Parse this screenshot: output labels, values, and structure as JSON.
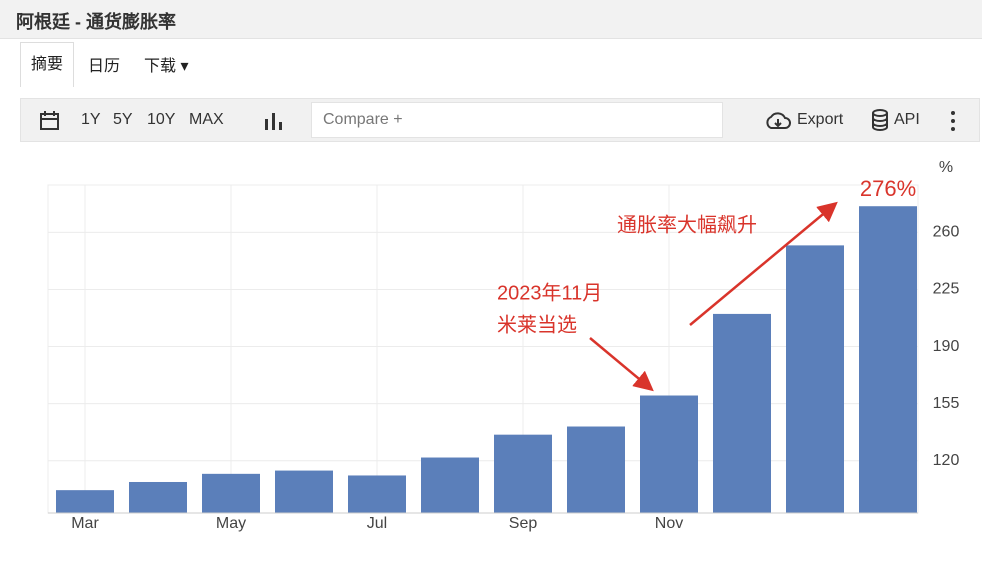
{
  "header": {
    "title": "阿根廷 - 通货膨胀率"
  },
  "tabs": [
    "摘要",
    "日历",
    "下载"
  ],
  "toolbar": {
    "ranges": [
      "1Y",
      "5Y",
      "10Y",
      "MAX"
    ],
    "compare": "Compare +",
    "export": "Export",
    "api": "API"
  },
  "chart_data": {
    "type": "bar",
    "y_unit": "%",
    "categories": [
      "Mar",
      null,
      "May",
      null,
      "Jul",
      null,
      "Sep",
      null,
      "Nov",
      null,
      null,
      null
    ],
    "values": [
      102,
      107,
      112,
      114,
      111,
      122,
      136,
      141,
      160,
      210,
      252,
      276
    ],
    "value_labels": [
      null,
      null,
      null,
      null,
      null,
      null,
      null,
      null,
      null,
      null,
      null,
      "276%"
    ],
    "color": "#5b7fba",
    "label_color": "#d9342b",
    "ylim": [
      88,
      289
    ],
    "yticks": [
      120,
      155,
      190,
      225,
      260
    ],
    "grid": true,
    "annotations": [
      [
        "2023年11月",
        "米莱当选"
      ],
      "通胀率大幅飙升"
    ]
  }
}
